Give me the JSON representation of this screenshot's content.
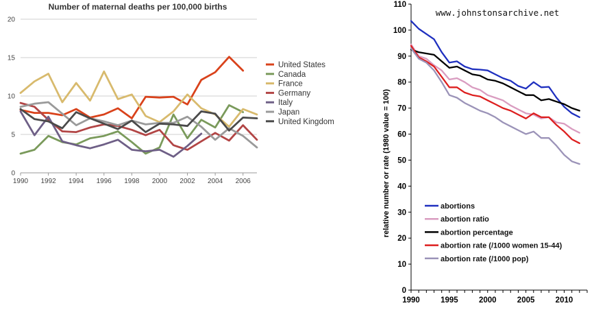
{
  "chart_data": [
    {
      "type": "line",
      "title": "Number of maternal deaths per 100,000 births",
      "x": [
        1990,
        1991,
        1992,
        1993,
        1994,
        1995,
        1996,
        1997,
        1998,
        1999,
        2000,
        2001,
        2002,
        2003,
        2004,
        2005,
        2006,
        2007
      ],
      "xticks": [
        "1990",
        "1992",
        "1994",
        "1996",
        "1998",
        "2000",
        "2002",
        "2004",
        "2006"
      ],
      "yticks": [
        "0",
        "5",
        "10",
        "15",
        "20"
      ],
      "ylim": [
        0,
        20
      ],
      "xlim": [
        1990,
        2007
      ],
      "grid": "horizontal",
      "legend": "right",
      "series": [
        {
          "name": "United States",
          "color": "#d9421b",
          "values": [
            8.2,
            7.8,
            7.8,
            7.5,
            8.3,
            7.2,
            7.6,
            8.4,
            7.1,
            9.9,
            9.8,
            9.9,
            8.9,
            12.1,
            13.1,
            15.1,
            13.3,
            null
          ]
        },
        {
          "name": "Canada",
          "color": "#7a9a5b",
          "values": [
            2.5,
            3.0,
            4.8,
            4.0,
            3.7,
            4.5,
            4.8,
            5.4,
            4.0,
            2.5,
            3.3,
            7.6,
            4.5,
            6.9,
            5.9,
            8.8,
            7.9,
            null
          ]
        },
        {
          "name": "France",
          "color": "#d8ba6d",
          "values": [
            10.4,
            11.9,
            12.9,
            9.2,
            11.7,
            9.4,
            13.2,
            9.6,
            10.2,
            7.4,
            6.6,
            8.0,
            10.2,
            8.4,
            7.6,
            6.0,
            8.3,
            7.6
          ]
        },
        {
          "name": "Germany",
          "color": "#b24545",
          "values": [
            9.1,
            8.6,
            6.9,
            5.4,
            5.3,
            5.9,
            6.3,
            6.1,
            5.6,
            4.9,
            5.6,
            3.6,
            3.0,
            4.1,
            5.2,
            4.2,
            6.2,
            4.3
          ]
        },
        {
          "name": "Italy",
          "color": "#6e5f86",
          "values": [
            8.0,
            4.9,
            7.3,
            4.1,
            3.6,
            3.2,
            3.7,
            4.3,
            3.0,
            2.8,
            3.0,
            2.1,
            3.5,
            5.1,
            null,
            null,
            null,
            null
          ]
        },
        {
          "name": "Japan",
          "color": "#9a9a9a",
          "values": [
            8.6,
            9.0,
            9.2,
            7.7,
            6.2,
            7.1,
            6.7,
            6.2,
            6.8,
            6.3,
            6.5,
            6.5,
            7.3,
            6.0,
            4.3,
            5.8,
            4.8,
            3.3
          ]
        },
        {
          "name": "United Kingdom",
          "color": "#4a4a4a",
          "values": [
            8.3,
            7.0,
            6.7,
            5.8,
            7.9,
            7.1,
            6.4,
            5.7,
            6.8,
            5.3,
            6.4,
            6.3,
            6.1,
            8.0,
            7.7,
            5.5,
            7.2,
            7.1
          ]
        }
      ]
    },
    {
      "type": "line",
      "title": "",
      "watermark": "www.johnstonsarchive.net",
      "ylabel": "relative number or rate (1980 value = 100)",
      "x": [
        1990,
        1991,
        1992,
        1993,
        1994,
        1995,
        1996,
        1997,
        1998,
        1999,
        2000,
        2001,
        2002,
        2003,
        2004,
        2005,
        2006,
        2007,
        2008,
        2009,
        2010,
        2011,
        2012
      ],
      "xticks": [
        "1990",
        "1995",
        "2000",
        "2005",
        "2010"
      ],
      "yticks": [
        "0",
        "10",
        "20",
        "30",
        "40",
        "50",
        "60",
        "70",
        "80",
        "90",
        "100",
        "110"
      ],
      "ylim": [
        0,
        110
      ],
      "xlim": [
        1990,
        2013
      ],
      "grid": "none",
      "legend": "bottom-left",
      "series": [
        {
          "name": "abortions",
          "color": "#1e2fbf",
          "values": [
            103.5,
            100.5,
            98.5,
            96.5,
            91.5,
            87.5,
            88.0,
            86.0,
            85.0,
            84.8,
            84.5,
            83.0,
            81.5,
            80.5,
            78.5,
            77.5,
            80.0,
            78.0,
            78.2,
            74.0,
            70.5,
            68.0,
            66.5
          ]
        },
        {
          "name": "abortion ratio",
          "color": "#d99cc0",
          "values": [
            94.5,
            90.0,
            89.0,
            86.5,
            84.5,
            81.0,
            81.5,
            80.0,
            78.0,
            77.0,
            75.0,
            74.0,
            73.0,
            71.0,
            69.5,
            68.0,
            67.5,
            66.0,
            66.5,
            64.5,
            64.0,
            62.0,
            60.5
          ]
        },
        {
          "name": "abortion percentage",
          "color": "#000000",
          "values": [
            92.5,
            91.5,
            91.0,
            90.5,
            88.0,
            85.5,
            86.0,
            84.5,
            83.0,
            82.5,
            81.0,
            80.5,
            79.5,
            78.0,
            76.5,
            75.0,
            75.0,
            73.0,
            73.5,
            72.5,
            71.5,
            70.0,
            69.0
          ]
        },
        {
          "name": "abortion rate (/1000 women 15-44)",
          "color": "#dd1f1f",
          "values": [
            94.0,
            89.5,
            88.0,
            86.0,
            82.0,
            78.0,
            78.0,
            76.0,
            75.0,
            74.5,
            73.0,
            71.5,
            70.0,
            69.0,
            67.5,
            66.0,
            68.0,
            66.5,
            66.5,
            63.5,
            61.0,
            58.0,
            56.5
          ]
        },
        {
          "name": "abortion rate (/1000 pop)",
          "color": "#9b93b8",
          "values": [
            93.0,
            89.0,
            87.5,
            84.5,
            80.0,
            75.0,
            74.0,
            72.0,
            70.5,
            69.0,
            68.0,
            66.5,
            64.5,
            63.0,
            61.5,
            60.0,
            61.0,
            58.5,
            58.5,
            55.5,
            52.0,
            49.5,
            48.5
          ]
        }
      ]
    }
  ]
}
